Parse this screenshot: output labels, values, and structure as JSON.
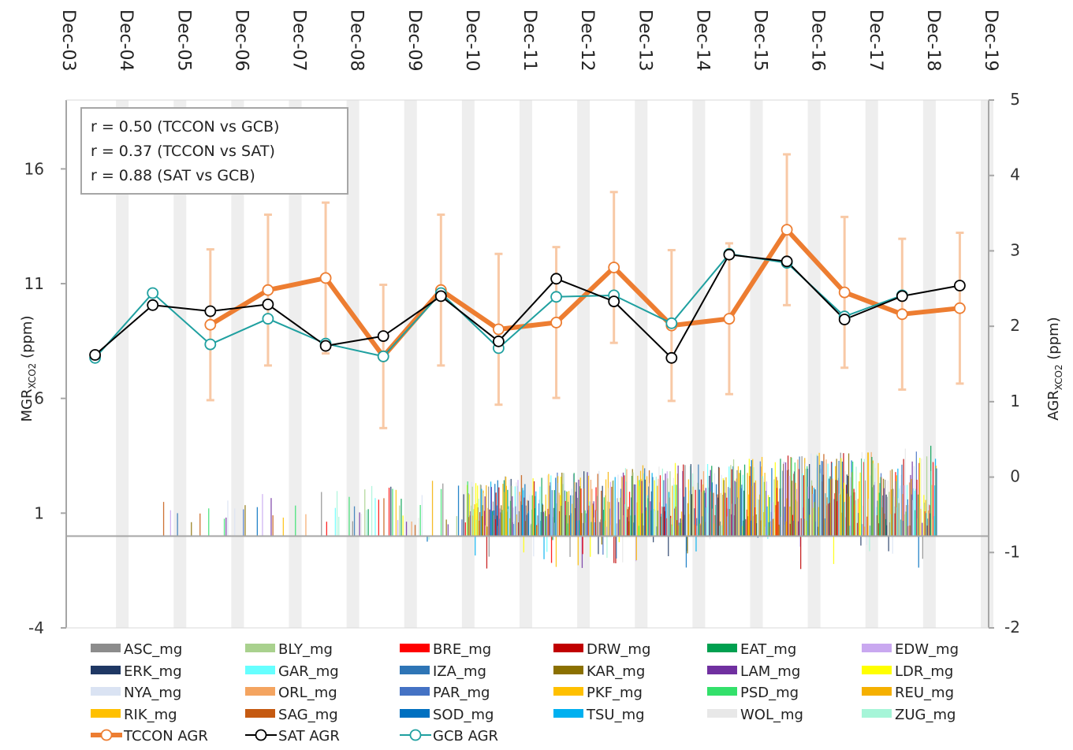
{
  "chart_data": {
    "type": "line",
    "x_tick_labels": [
      "Dec-03",
      "Dec-04",
      "Dec-05",
      "Dec-06",
      "Dec-07",
      "Dec-08",
      "Dec-09",
      "Dec-10",
      "Dec-11",
      "Dec-12",
      "Dec-13",
      "Dec-14",
      "Dec-15",
      "Dec-16",
      "Dec-17",
      "Dec-18",
      "Dec-19"
    ],
    "xlim": [
      "Dec-03",
      "Dec-19"
    ],
    "y_left": {
      "label_main": "MGR",
      "label_sub": "XCO2",
      "label_unit": " (ppm)",
      "ticks": [
        -4,
        1,
        6,
        11,
        16
      ],
      "ylim": [
        -4,
        19
      ]
    },
    "y_right": {
      "label_main": "AGR",
      "label_sub": "XCO2",
      "label_unit": " (ppm)",
      "ticks": [
        -2,
        -1,
        0,
        1,
        2,
        3,
        4,
        5
      ],
      "ylim": [
        -2,
        5
      ]
    },
    "annotations": [
      "r = 0.50 (TCCON vs GCB)",
      "r = 0.37 (TCCON vs SAT)",
      "r = 0.88 (SAT vs GCB)"
    ],
    "grid": "vertical bands",
    "colors": {
      "tccon": "#ED7D31",
      "tccon_err": "#F8C9A6",
      "sat": "#000000",
      "gcb": "#1FA0A0",
      "axis": "#A6A6A6",
      "band": "#EEEEEE"
    },
    "series": [
      {
        "name": "TCCON AGR",
        "axis": "right",
        "x": [
          "2006-06",
          "2007-06",
          "2008-06",
          "2009-06",
          "2010-06",
          "2011-06",
          "2012-06",
          "2013-06",
          "2014-06",
          "2015-06",
          "2016-06",
          "2017-06",
          "2018-06",
          "2019-06"
        ],
        "y": [
          2.02,
          2.48,
          2.64,
          1.6,
          2.48,
          1.96,
          2.05,
          2.78,
          2.01,
          2.1,
          3.28,
          2.45,
          2.16,
          2.24
        ],
        "err": [
          1.0,
          1.0,
          1.0,
          0.95,
          1.0,
          1.0,
          1.0,
          1.0,
          1.0,
          1.0,
          1.0,
          1.0,
          1.0,
          1.0
        ]
      },
      {
        "name": "SAT AGR",
        "axis": "right",
        "x": [
          "2004-06",
          "2005-06",
          "2006-06",
          "2007-06",
          "2008-06",
          "2009-06",
          "2010-06",
          "2011-06",
          "2012-06",
          "2013-06",
          "2014-06",
          "2015-06",
          "2016-06",
          "2017-06",
          "2018-06",
          "2019-06"
        ],
        "y": [
          1.62,
          2.28,
          2.2,
          2.29,
          1.74,
          1.87,
          2.4,
          1.8,
          2.63,
          2.33,
          1.58,
          2.95,
          2.86,
          2.09,
          2.4,
          2.54
        ]
      },
      {
        "name": "GCB AGR",
        "axis": "right",
        "x": [
          "2004-06",
          "2005-06",
          "2006-06",
          "2007-06",
          "2008-06",
          "2009-06",
          "2010-06",
          "2011-06",
          "2012-06",
          "2013-06",
          "2014-06",
          "2015-06",
          "2016-06",
          "2017-06",
          "2018-06"
        ],
        "y": [
          1.58,
          2.44,
          1.76,
          2.1,
          1.77,
          1.6,
          2.44,
          1.71,
          2.39,
          2.41,
          2.04,
          2.96,
          2.84,
          2.13,
          2.41
        ]
      }
    ],
    "bar_series": [
      "ASC_mg",
      "BLY_mg",
      "BRE_mg",
      "DRW_mg",
      "EAT_mg",
      "EDW_mg",
      "ERK_mg",
      "GAR_mg",
      "IZA_mg",
      "KAR_mg",
      "LAM_mg",
      "LDR_mg",
      "NYA_mg",
      "ORL_mg",
      "PAR_mg",
      "PKF_mg",
      "PSD_mg",
      "REU_mg",
      "RIK_mg",
      "SAG_mg",
      "SOD_mg",
      "TSU_mg",
      "WOL_mg",
      "ZUG_mg"
    ],
    "bar_series_colors": [
      "#8C8C8C",
      "#A9D18E",
      "#FF0000",
      "#C00000",
      "#00A050",
      "#C9A8F0",
      "#1F3864",
      "#66FFFF",
      "#2E75B6",
      "#8B7000",
      "#7030A0",
      "#FFFF00",
      "#DAE3F3",
      "#F4A460",
      "#4472C4",
      "#FFC000",
      "#33E06B",
      "#F5B000",
      "#FFC000",
      "#C55A11",
      "#0070C0",
      "#00B0F0",
      "#E8E8E8",
      "#A6F5D8"
    ],
    "bar_note": "dense monthly MGR bars, values roughly 0-5 ppm, starting mid-2005 and increasing in density over time",
    "legend_placement": "bottom"
  }
}
